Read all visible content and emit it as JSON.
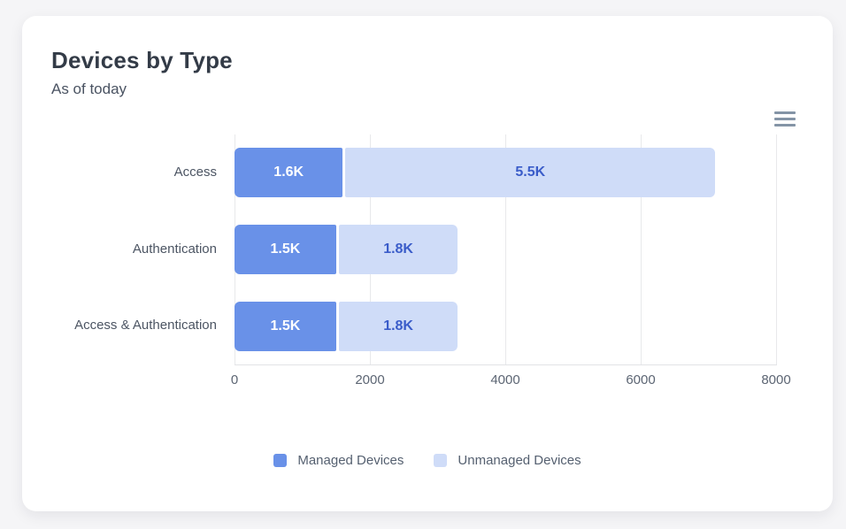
{
  "card": {
    "title": "Devices by Type",
    "subtitle": "As of today"
  },
  "colors": {
    "managed_bar": "#6991E8",
    "unmanaged_bar": "#CFDCF8",
    "managed_bar_label": "#FFFFFF",
    "unmanaged_bar_label": "#3A5CC9",
    "grid_line": "#E8E9EB",
    "axis_line": "#E2E3E6",
    "hamburger_icon": "#8494A6",
    "page_background": "#F5F5F7",
    "card_background": "#FFFFFF"
  },
  "chart_data": {
    "type": "bar",
    "orientation": "horizontal",
    "stacked": true,
    "title": "Devices by Type",
    "subtitle": "As of today",
    "categories": [
      "Access",
      "Authentication",
      "Access & Authentication"
    ],
    "series": [
      {
        "name": "Managed Devices",
        "color": "#6991E8",
        "label_color": "#FFFFFF",
        "values": [
          1600,
          1500,
          1500
        ],
        "labels": [
          "1.6K",
          "1.5K",
          "1.5K"
        ]
      },
      {
        "name": "Unmanaged Devices",
        "color": "#CFDCF8",
        "label_color": "#3A5CC9",
        "values": [
          5500,
          1800,
          1800
        ],
        "labels": [
          "5.5K",
          "1.8K",
          "1.8K"
        ]
      }
    ],
    "xlim": [
      0,
      8000
    ],
    "xticks": [
      0,
      2000,
      4000,
      6000,
      8000
    ],
    "grid": true,
    "legend_position": "bottom"
  }
}
